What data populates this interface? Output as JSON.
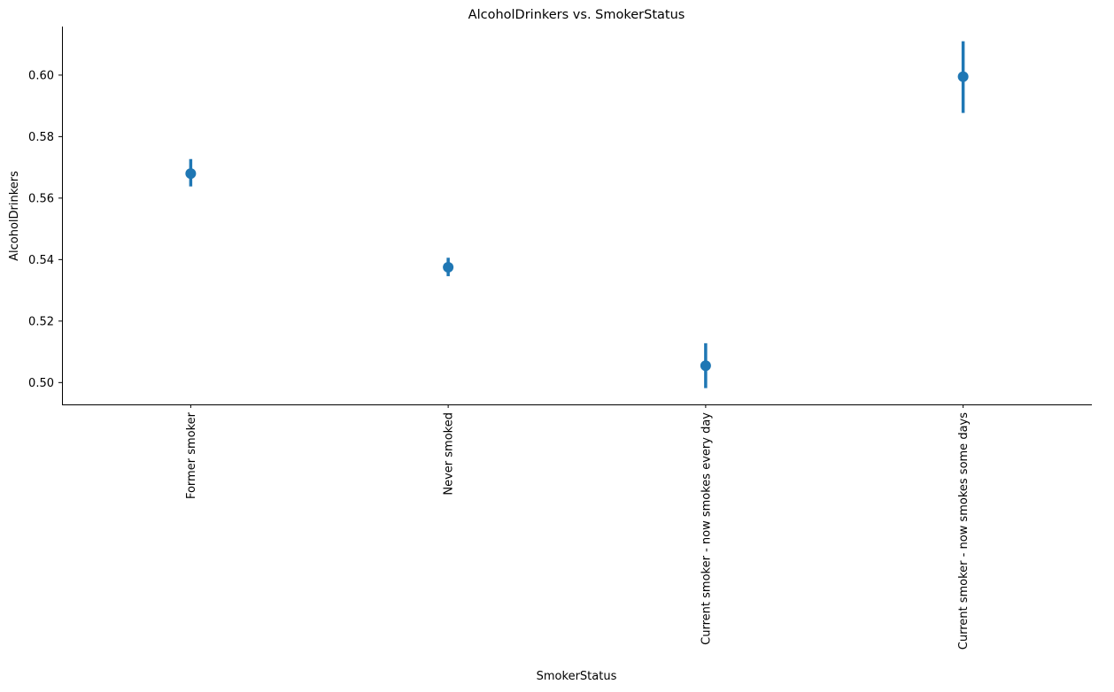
{
  "chart_data": {
    "type": "pointplot",
    "title": "AlcoholDrinkers vs. SmokerStatus",
    "xlabel": "SmokerStatus",
    "ylabel": "AlcoholDrinkers",
    "categories": [
      "Former smoker",
      "Never smoked",
      "Current smoker - now smokes every day",
      "Current smoker - now smokes some days"
    ],
    "values": [
      0.568,
      0.5375,
      0.5055,
      0.5995
    ],
    "error_low": [
      0.5638,
      0.5346,
      0.4982,
      0.5877
    ],
    "error_high": [
      0.5727,
      0.5406,
      0.5128,
      0.611
    ],
    "ylim": [
      0.4929,
      0.6158
    ],
    "yticks": [
      0.5,
      0.52,
      0.54,
      0.56,
      0.58,
      0.6
    ],
    "ytick_labels": [
      "0.50",
      "0.52",
      "0.54",
      "0.56",
      "0.58",
      "0.60"
    ],
    "grid": false,
    "color": "#1f77b4"
  }
}
